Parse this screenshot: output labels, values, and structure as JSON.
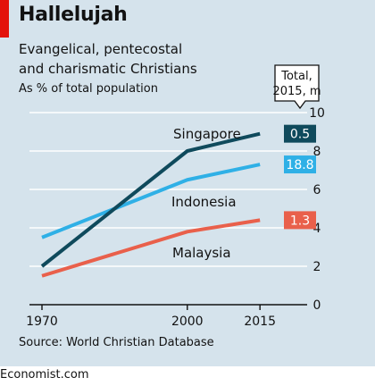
{
  "header": {
    "title": "Hallelujah",
    "subtitle_line1": "Evangelical, pentecostal",
    "subtitle_line2": "and charismatic Christians",
    "unit": "As % of total population"
  },
  "callout": {
    "line1": "Total,",
    "line2": "2015, m"
  },
  "source": "Source: World Christian Database",
  "footer": "Economist.com",
  "colors": {
    "background": "#d5e3ec",
    "brand_red": "#e3120b",
    "Singapore": "#0f4a5c",
    "Indonesia": "#2fb0e6",
    "Malaysia": "#e9604b"
  },
  "chart_data": {
    "type": "line",
    "title": "Hallelujah",
    "subtitle": "Evangelical, pentecostal and charismatic Christians",
    "ylabel": "As % of total population",
    "x": [
      1970,
      2000,
      2015
    ],
    "x_tick_labels": [
      "1970",
      "2000",
      "2015"
    ],
    "xlim": [
      1970,
      2024
    ],
    "ylim": [
      0,
      10
    ],
    "y_ticks": [
      0,
      2,
      4,
      6,
      8,
      10
    ],
    "y_axis_side": "right",
    "grid": true,
    "series": [
      {
        "name": "Singapore",
        "values": [
          2.0,
          8.0,
          8.9
        ],
        "total_2015_m": "0.5",
        "color": "#0f4a5c"
      },
      {
        "name": "Indonesia",
        "values": [
          3.5,
          6.5,
          7.3
        ],
        "total_2015_m": "18.8",
        "color": "#2fb0e6"
      },
      {
        "name": "Malaysia",
        "values": [
          1.5,
          3.8,
          4.4
        ],
        "total_2015_m": "1.3",
        "color": "#e9604b"
      }
    ]
  }
}
